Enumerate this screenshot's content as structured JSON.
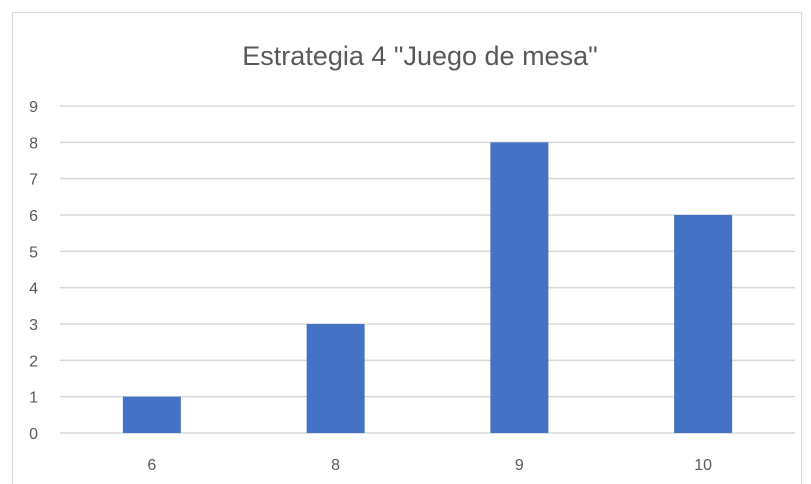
{
  "chart_data": {
    "type": "bar",
    "title": "Estrategia 4 \"Juego de mesa\"",
    "categories": [
      "6",
      "8",
      "9",
      "10"
    ],
    "values": [
      1,
      3,
      8,
      6
    ],
    "xlabel": "",
    "ylabel": "",
    "ylim": [
      0,
      9
    ],
    "yticks": [
      0,
      1,
      2,
      3,
      4,
      5,
      6,
      7,
      8,
      9
    ],
    "grid": true,
    "legend": "none",
    "bar_color": "#4472c4"
  }
}
